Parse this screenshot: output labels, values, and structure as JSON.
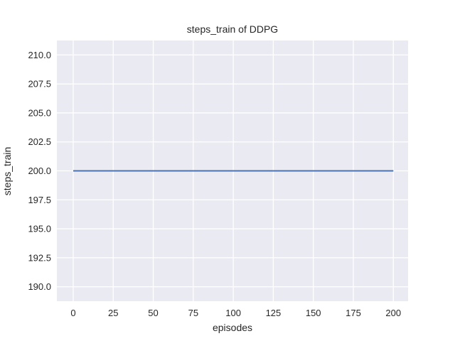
{
  "chart_data": {
    "type": "line",
    "title": "steps_train of DDPG",
    "xlabel": "episodes",
    "ylabel": "steps_train",
    "series": [
      {
        "name": "steps_train",
        "color": "#4c72b0",
        "x": [
          0,
          200
        ],
        "y": [
          200,
          200
        ],
        "shape": "constant horizontal line at 200 across all episodes"
      }
    ],
    "xlim": [
      -10.2,
      209.2
    ],
    "ylim": [
      188.75,
      211.25
    ],
    "xticks": {
      "values": [
        0,
        25,
        50,
        75,
        100,
        125,
        150,
        175,
        200
      ],
      "labels": [
        "0",
        "25",
        "50",
        "75",
        "100",
        "125",
        "150",
        "175",
        "200"
      ]
    },
    "yticks": {
      "values": [
        190,
        192.5,
        195,
        197.5,
        200,
        202.5,
        205,
        207.5,
        210
      ],
      "labels": [
        "190.0",
        "192.5",
        "195.0",
        "197.5",
        "200.0",
        "202.5",
        "205.0",
        "207.5",
        "210.0"
      ]
    },
    "grid": true,
    "legend": "none",
    "style": {
      "axes_background": "#eaeaf2",
      "grid_color": "#ffffff",
      "figure_background": "#ffffff",
      "text_color": "#262626",
      "line_color": "#4c72b0"
    }
  }
}
